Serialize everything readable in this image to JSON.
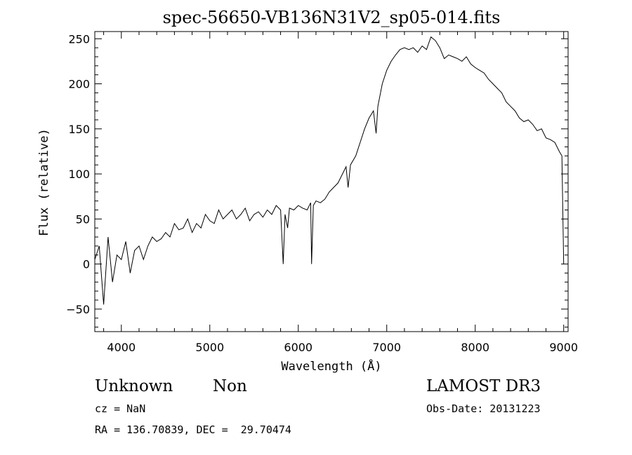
{
  "chart_data": {
    "type": "line",
    "title": "spec-56650-VB136N31V2_sp05-014.fits",
    "xlabel": "Wavelength (Å)",
    "ylabel": "Flux (relative)",
    "xlim": [
      3700,
      9050
    ],
    "ylim": [
      -75,
      258
    ],
    "xticks": [
      4000,
      5000,
      6000,
      7000,
      8000,
      9000
    ],
    "yticks": [
      -50,
      0,
      50,
      100,
      150,
      200,
      250
    ],
    "grid": false,
    "series": [
      {
        "x": [
          3700,
          3750,
          3800,
          3850,
          3900,
          3950,
          4000,
          4050,
          4100,
          4150,
          4200,
          4250,
          4300,
          4350,
          4400,
          4450,
          4500,
          4550,
          4600,
          4650,
          4700,
          4750,
          4800,
          4850,
          4900,
          4950,
          5000,
          5050,
          5100,
          5150,
          5200,
          5250,
          5300,
          5350,
          5400,
          5450,
          5500,
          5550,
          5600,
          5650,
          5700,
          5750,
          5800,
          5830,
          5850,
          5880,
          5900,
          5950,
          6000,
          6050,
          6100,
          6140,
          6150,
          6170,
          6200,
          6250,
          6300,
          6350,
          6400,
          6450,
          6500,
          6540,
          6563,
          6590,
          6650,
          6700,
          6750,
          6800,
          6850,
          6880,
          6900,
          6950,
          7000,
          7050,
          7100,
          7150,
          7200,
          7250,
          7300,
          7350,
          7400,
          7450,
          7500,
          7550,
          7600,
          7650,
          7700,
          7750,
          7800,
          7850,
          7900,
          7950,
          8000,
          8050,
          8100,
          8150,
          8200,
          8250,
          8300,
          8350,
          8400,
          8450,
          8500,
          8550,
          8600,
          8650,
          8700,
          8750,
          8800,
          8850,
          8900,
          8950,
          8980,
          9000
        ],
        "y": [
          5,
          20,
          -45,
          30,
          -20,
          10,
          5,
          25,
          -10,
          15,
          20,
          5,
          20,
          30,
          25,
          28,
          35,
          30,
          45,
          38,
          40,
          50,
          35,
          45,
          40,
          55,
          48,
          45,
          60,
          50,
          55,
          60,
          50,
          55,
          62,
          48,
          55,
          58,
          52,
          60,
          55,
          65,
          60,
          0,
          55,
          40,
          62,
          60,
          65,
          62,
          60,
          68,
          0,
          65,
          70,
          68,
          72,
          80,
          85,
          90,
          100,
          108,
          85,
          110,
          120,
          135,
          150,
          162,
          170,
          145,
          175,
          200,
          215,
          225,
          232,
          238,
          240,
          238,
          240,
          235,
          242,
          238,
          252,
          248,
          240,
          228,
          232,
          230,
          228,
          225,
          230,
          222,
          218,
          215,
          212,
          205,
          200,
          195,
          190,
          180,
          175,
          170,
          162,
          158,
          160,
          155,
          148,
          150,
          140,
          138,
          135,
          125,
          120,
          0
        ]
      }
    ]
  },
  "info": {
    "object_class": "Unknown",
    "object_subclass": "Non",
    "survey": "LAMOST DR3",
    "redshift": "cz = NaN",
    "obs_date": "Obs-Date: 20131223",
    "coords": "RA = 136.70839, DEC =  29.70474"
  }
}
